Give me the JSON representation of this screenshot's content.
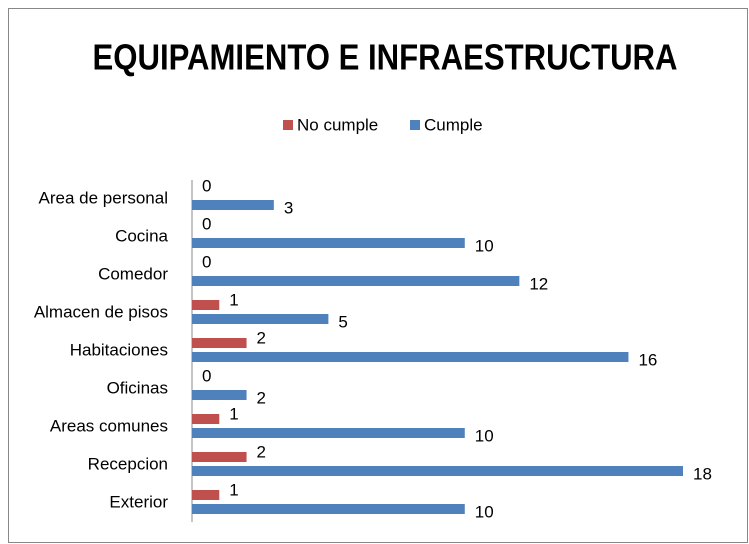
{
  "chart_data": {
    "type": "hbar",
    "title": "EQUIPAMIENTO E INFRAESTRUCTURA",
    "categories": [
      "Area de personal",
      "Cocina",
      "Comedor",
      "Almacen de pisos",
      "Habitaciones",
      "Oficinas",
      "Areas comunes",
      "Recepcion",
      "Exterior"
    ],
    "series": [
      {
        "name": "No cumple",
        "color": "#c0504d",
        "values": [
          0,
          0,
          0,
          1,
          2,
          0,
          1,
          2,
          1
        ]
      },
      {
        "name": "Cumple",
        "color": "#4f81bd",
        "values": [
          3,
          10,
          12,
          5,
          16,
          2,
          10,
          18,
          10
        ]
      }
    ],
    "legend": "top"
  }
}
